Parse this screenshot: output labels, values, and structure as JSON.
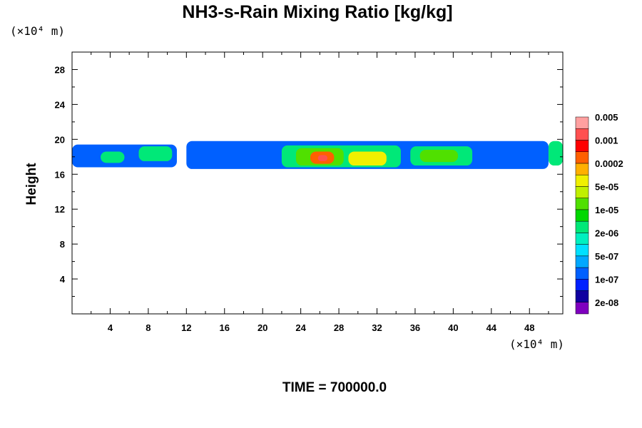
{
  "chart_data": {
    "type": "heatmap",
    "title": "NH3-s-Rain Mixing Ratio [kg/kg]",
    "ylabel": "Height",
    "x_unit": "(×10⁴ m)",
    "y_unit": "(×10⁴ m)",
    "xlim": [
      0,
      51.5
    ],
    "ylim": [
      0,
      30
    ],
    "x_ticks": [
      4,
      8,
      12,
      16,
      20,
      24,
      28,
      32,
      36,
      40,
      44,
      48
    ],
    "y_ticks": [
      4,
      8,
      12,
      16,
      20,
      24,
      28
    ],
    "annotation": "TIME = 700000.0",
    "colorbar": {
      "levels": [
        "2e-08",
        "1e-07",
        "5e-07",
        "2e-06",
        "1e-05",
        "5e-05",
        "0.0002",
        "0.001",
        "0.005"
      ],
      "colors": [
        "#7f00bf",
        "#1000a0",
        "#0020ff",
        "#0060ff",
        "#00a8ff",
        "#00e0ff",
        "#00f0c0",
        "#00e878",
        "#00d800",
        "#50e000",
        "#c0f000",
        "#f0f000",
        "#ffb000",
        "#ff6000",
        "#ff0000",
        "#ff5050",
        "#ffa0a0"
      ]
    },
    "regions": [
      {
        "x": [
          0,
          11
        ],
        "y": [
          16.8,
          19.4
        ],
        "level": "1e-07"
      },
      {
        "x": [
          3,
          5.5
        ],
        "y": [
          17.3,
          18.6
        ],
        "level": "2e-06"
      },
      {
        "x": [
          7,
          10.5
        ],
        "y": [
          17.5,
          19.2
        ],
        "level": "2e-06"
      },
      {
        "x": [
          12,
          50
        ],
        "y": [
          16.6,
          19.8
        ],
        "level": "1e-07"
      },
      {
        "x": [
          22,
          34.5
        ],
        "y": [
          16.8,
          19.3
        ],
        "level": "2e-06"
      },
      {
        "x": [
          23.5,
          28.5
        ],
        "y": [
          17.0,
          19.0
        ],
        "level": "1e-05"
      },
      {
        "x": [
          25,
          27.5
        ],
        "y": [
          17.2,
          18.6
        ],
        "level": "0.0002"
      },
      {
        "x": [
          25.8,
          26.8
        ],
        "y": [
          17.5,
          18.2
        ],
        "level": "0.001"
      },
      {
        "x": [
          29,
          33
        ],
        "y": [
          17.0,
          18.6
        ],
        "level": "5e-05"
      },
      {
        "x": [
          35.5,
          42
        ],
        "y": [
          17.0,
          19.2
        ],
        "level": "2e-06"
      },
      {
        "x": [
          36.5,
          40.5
        ],
        "y": [
          17.4,
          18.8
        ],
        "level": "1e-05"
      },
      {
        "x": [
          50,
          51.5
        ],
        "y": [
          17.0,
          19.8
        ],
        "level": "2e-06"
      }
    ]
  }
}
